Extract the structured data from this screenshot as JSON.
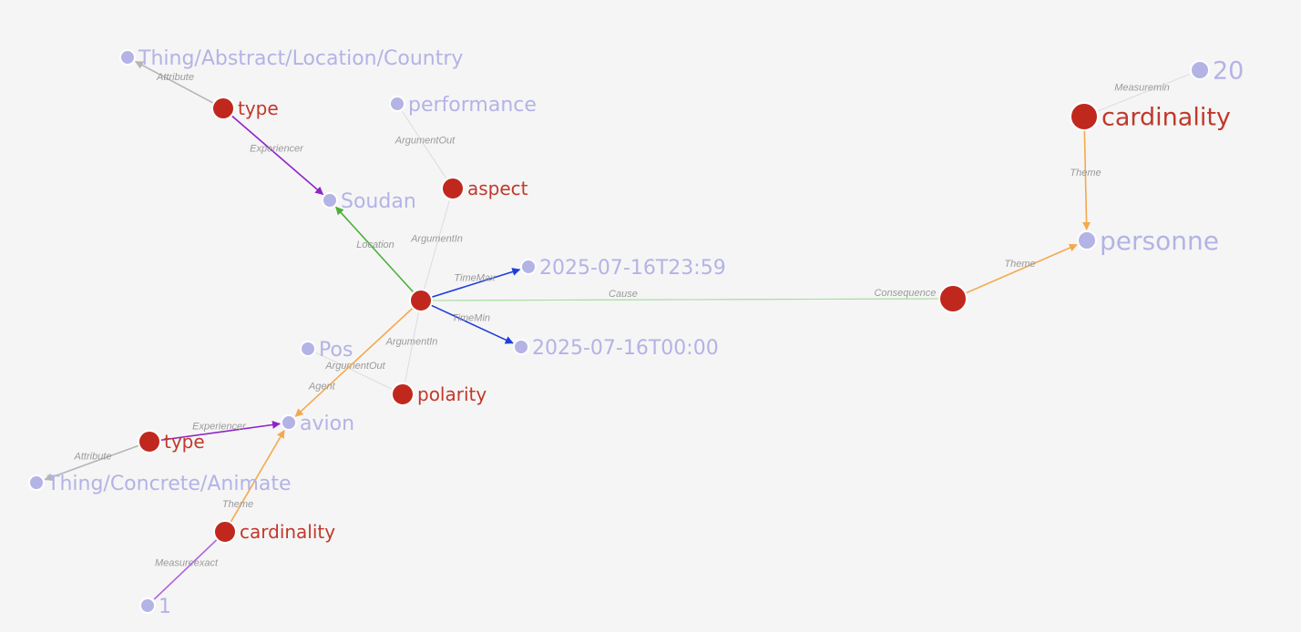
{
  "colors": {
    "background": "#f5f5f5",
    "predicate_node": "#c0281e",
    "predicate_label": "#c0392b",
    "concept_node": "#b3b3e6",
    "concept_label": "#b3b3e6",
    "edge_gray": "#b5b5b5",
    "edge_light": "#dcdcdc",
    "edge_purple": "#8e24c8",
    "edge_green": "#4caf3a",
    "edge_blue": "#1e3fd8",
    "edge_orange": "#f4a94e",
    "edge_lightgreen": "#a8dca0",
    "edge_lilac": "#b060e0"
  },
  "nodes": [
    {
      "id": "event",
      "label": "",
      "kind": "predicate"
    },
    {
      "id": "country",
      "label": "Thing/Abstract/Location/Country",
      "kind": "concept"
    },
    {
      "id": "type1",
      "label": "type",
      "kind": "predicate"
    },
    {
      "id": "performance",
      "label": "performance",
      "kind": "concept"
    },
    {
      "id": "soudan",
      "label": "Soudan",
      "kind": "concept"
    },
    {
      "id": "aspect",
      "label": "aspect",
      "kind": "predicate"
    },
    {
      "id": "tmax",
      "label": "2025-07-16T23:59",
      "kind": "concept"
    },
    {
      "id": "tmin",
      "label": "2025-07-16T00:00",
      "kind": "concept"
    },
    {
      "id": "pos",
      "label": "Pos",
      "kind": "concept"
    },
    {
      "id": "polarity",
      "label": "polarity",
      "kind": "predicate"
    },
    {
      "id": "avion",
      "label": "avion",
      "kind": "concept"
    },
    {
      "id": "type2",
      "label": "type",
      "kind": "predicate"
    },
    {
      "id": "animate",
      "label": "Thing/Concrete/Animate",
      "kind": "concept"
    },
    {
      "id": "card2",
      "label": "cardinality",
      "kind": "predicate"
    },
    {
      "id": "one",
      "label": "1",
      "kind": "concept"
    },
    {
      "id": "conseq",
      "label": "",
      "kind": "predicate"
    },
    {
      "id": "personne",
      "label": "personne",
      "kind": "concept"
    },
    {
      "id": "card1",
      "label": "cardinality",
      "kind": "predicate"
    },
    {
      "id": "twenty",
      "label": "20",
      "kind": "concept"
    }
  ],
  "edges": [
    {
      "from": "type1",
      "to": "country",
      "label": "Attribute",
      "color": "edge_gray",
      "arrow": true
    },
    {
      "from": "type1",
      "to": "soudan",
      "label": "Experiencer",
      "color": "edge_purple",
      "arrow": true
    },
    {
      "from": "aspect",
      "to": "performance",
      "label": "ArgumentOut",
      "color": "edge_light",
      "arrow": false
    },
    {
      "from": "event",
      "to": "aspect",
      "label": "ArgumentIn",
      "color": "edge_light",
      "arrow": false
    },
    {
      "from": "event",
      "to": "soudan",
      "label": "Location",
      "color": "edge_green",
      "arrow": true
    },
    {
      "from": "event",
      "to": "tmax",
      "label": "TimeMax",
      "color": "edge_blue",
      "arrow": true
    },
    {
      "from": "event",
      "to": "tmin",
      "label": "TimeMin",
      "color": "edge_blue",
      "arrow": true
    },
    {
      "from": "event",
      "to": "conseq",
      "label": "Cause",
      "color": "edge_lightgreen",
      "arrow": false
    },
    {
      "from": "conseq",
      "to": "event",
      "label": "Consequence",
      "color": "edge_lightgreen",
      "arrow": false
    },
    {
      "from": "conseq",
      "to": "personne",
      "label": "Theme",
      "color": "edge_orange",
      "arrow": true
    },
    {
      "from": "card1",
      "to": "personne",
      "label": "Theme",
      "color": "edge_orange",
      "arrow": true
    },
    {
      "from": "card1",
      "to": "twenty",
      "label": "Measuremin",
      "color": "edge_light",
      "arrow": false
    },
    {
      "from": "event",
      "to": "polarity",
      "label": "ArgumentIn",
      "color": "edge_light",
      "arrow": false
    },
    {
      "from": "polarity",
      "to": "pos",
      "label": "ArgumentOut",
      "color": "edge_light",
      "arrow": false
    },
    {
      "from": "event",
      "to": "avion",
      "label": "Agent",
      "color": "edge_orange",
      "arrow": true
    },
    {
      "from": "type2",
      "to": "avion",
      "label": "Experiencer",
      "color": "edge_purple",
      "arrow": true
    },
    {
      "from": "type2",
      "to": "animate",
      "label": "Attribute",
      "color": "edge_gray",
      "arrow": true
    },
    {
      "from": "card2",
      "to": "avion",
      "label": "Theme",
      "color": "edge_orange",
      "arrow": true
    },
    {
      "from": "card2",
      "to": "one",
      "label": "Measureexact",
      "color": "edge_lilac",
      "arrow": false
    }
  ]
}
